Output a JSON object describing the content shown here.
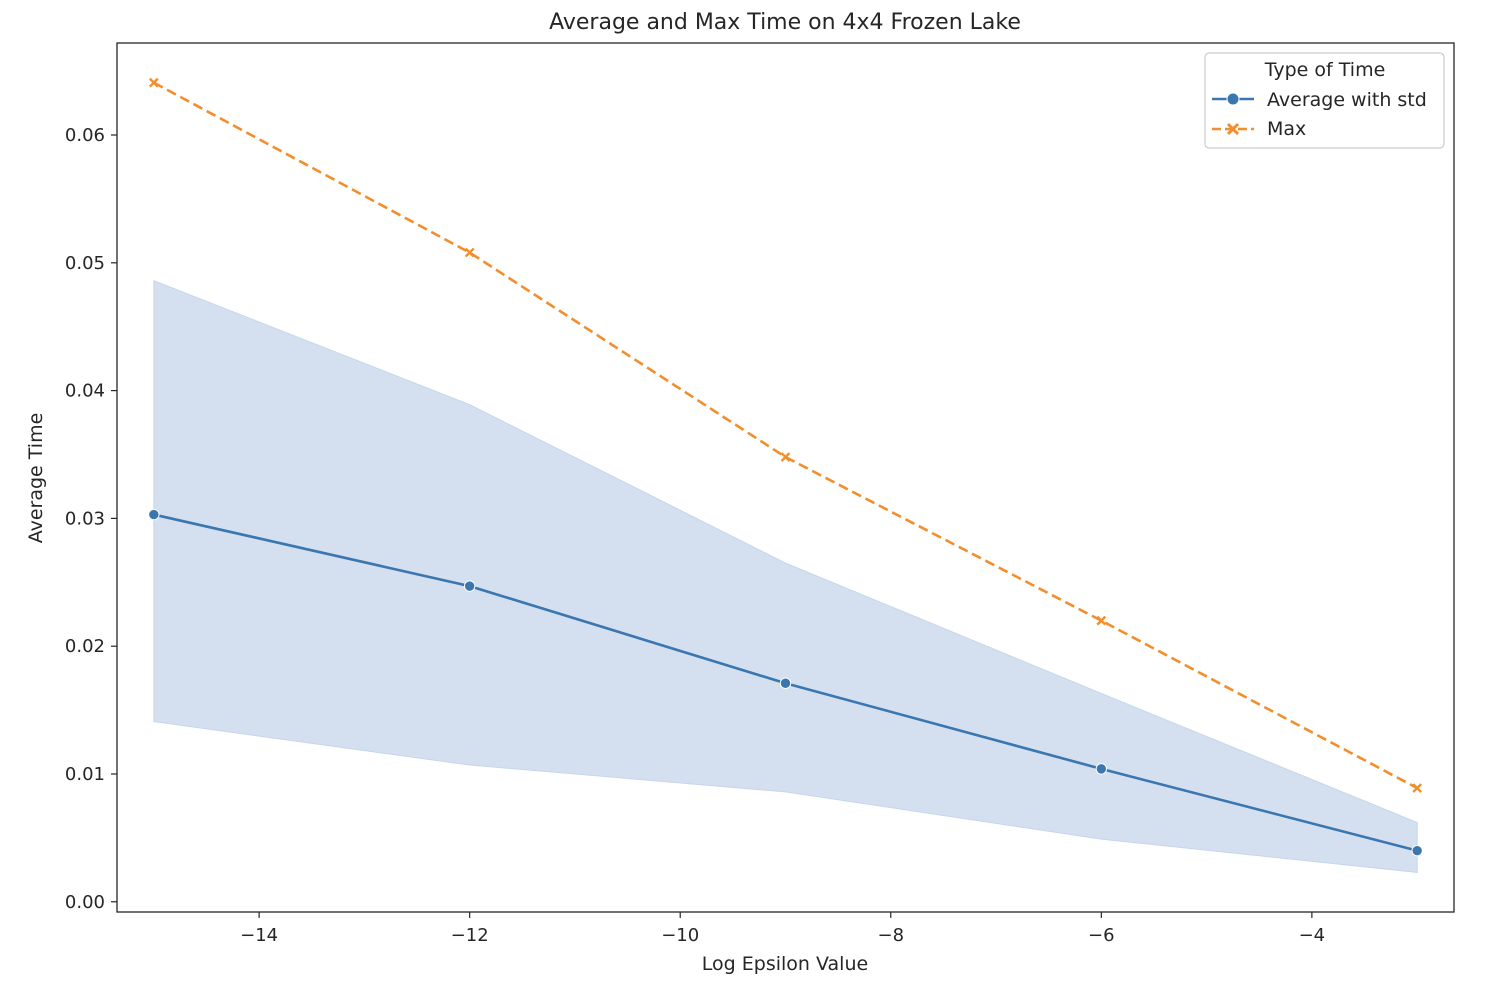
{
  "chart_data": {
    "type": "line",
    "title": "Average and Max Time on 4x4 Frozen Lake",
    "xlabel": "Log Epsilon Value",
    "ylabel": "Average Time",
    "xlim": [
      -15.35,
      -2.65
    ],
    "ylim": [
      -0.0008,
      0.0672
    ],
    "xticks": [
      -14,
      -12,
      -10,
      -8,
      -6,
      -4
    ],
    "xtick_labels": [
      "−14",
      "−12",
      "−10",
      "−8",
      "−6",
      "−4"
    ],
    "yticks": [
      0.0,
      0.01,
      0.02,
      0.03,
      0.04,
      0.05,
      0.06
    ],
    "ytick_labels": [
      "0.00",
      "0.01",
      "0.02",
      "0.03",
      "0.04",
      "0.05",
      "0.06"
    ],
    "grid": false,
    "x": [
      -15,
      -12,
      -9,
      -6,
      -3
    ],
    "series": [
      {
        "name": "Average with std",
        "values": [
          0.0303,
          0.0247,
          0.0171,
          0.0104,
          0.004
        ],
        "band_upper": [
          0.0486,
          0.0389,
          0.0265,
          0.0163,
          0.0062
        ],
        "band_lower": [
          0.0141,
          0.0107,
          0.0086,
          0.0049,
          0.0023
        ],
        "color": "#3a76b0",
        "band_color": "#c5d6ea",
        "marker": "circle",
        "linestyle": "solid"
      },
      {
        "name": "Max",
        "values": [
          0.0641,
          0.0508,
          0.0348,
          0.022,
          0.0089
        ],
        "color": "#f28e2b",
        "marker": "x",
        "linestyle": "dashed"
      }
    ],
    "legend": {
      "title": "Type of Time",
      "placement": "top-right"
    }
  }
}
